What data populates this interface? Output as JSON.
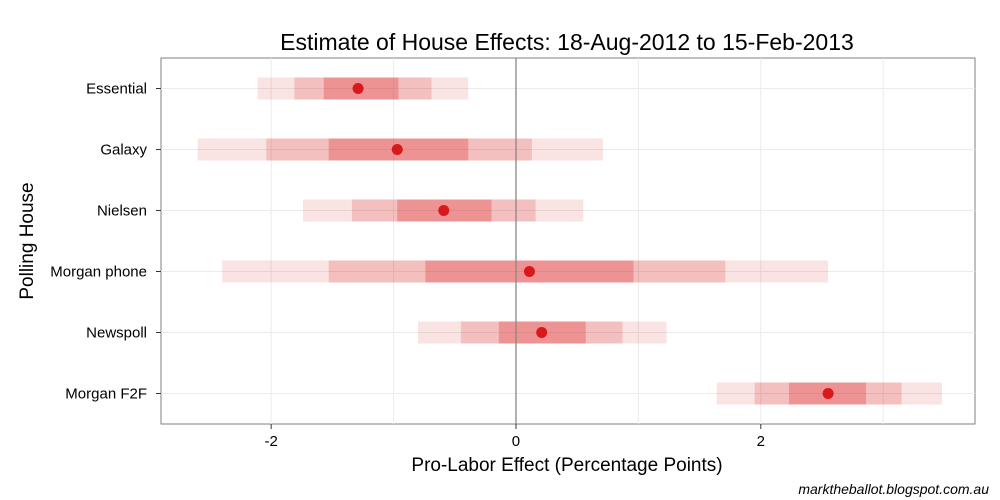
{
  "chart_data": {
    "type": "interval",
    "title": "Estimate of House Effects: 18-Aug-2012 to 15-Feb-2013",
    "xlabel": "Pro-Labor Effect (Percentage Points)",
    "ylabel": "Polling House",
    "xlim": [
      -2.9,
      3.75
    ],
    "xticks": [
      -2,
      0,
      2
    ],
    "xtick_labels": [
      "-2",
      "0",
      "2"
    ],
    "reference_line_x": 0,
    "colors": {
      "point": "#d7191c",
      "band": "#d7191c",
      "zero_line": "#888888",
      "grid": "#ebebeb"
    },
    "houses": [
      {
        "name": "Essential",
        "point": -1.29,
        "outer": [
          -2.11,
          -0.39
        ],
        "middle": [
          -1.81,
          -0.69
        ],
        "inner": [
          -1.57,
          -0.96
        ]
      },
      {
        "name": "Galaxy",
        "point": -0.97,
        "outer": [
          -2.6,
          0.71
        ],
        "middle": [
          -2.04,
          0.13
        ],
        "inner": [
          -1.53,
          -0.39
        ]
      },
      {
        "name": "Nielsen",
        "point": -0.59,
        "outer": [
          -1.74,
          0.55
        ],
        "middle": [
          -1.34,
          0.16
        ],
        "inner": [
          -0.97,
          -0.2
        ]
      },
      {
        "name": "Morgan phone",
        "point": 0.11,
        "outer": [
          -2.4,
          2.55
        ],
        "middle": [
          -1.53,
          1.71
        ],
        "inner": [
          -0.74,
          0.96
        ]
      },
      {
        "name": "Newspoll",
        "point": 0.21,
        "outer": [
          -0.8,
          1.23
        ],
        "middle": [
          -0.45,
          0.87
        ],
        "inner": [
          -0.14,
          0.57
        ]
      },
      {
        "name": "Morgan F2F",
        "point": 2.55,
        "outer": [
          1.64,
          3.48
        ],
        "middle": [
          1.95,
          3.15
        ],
        "inner": [
          2.23,
          2.86
        ]
      }
    ],
    "credit": "marktheballot.blogspot.com.au"
  }
}
